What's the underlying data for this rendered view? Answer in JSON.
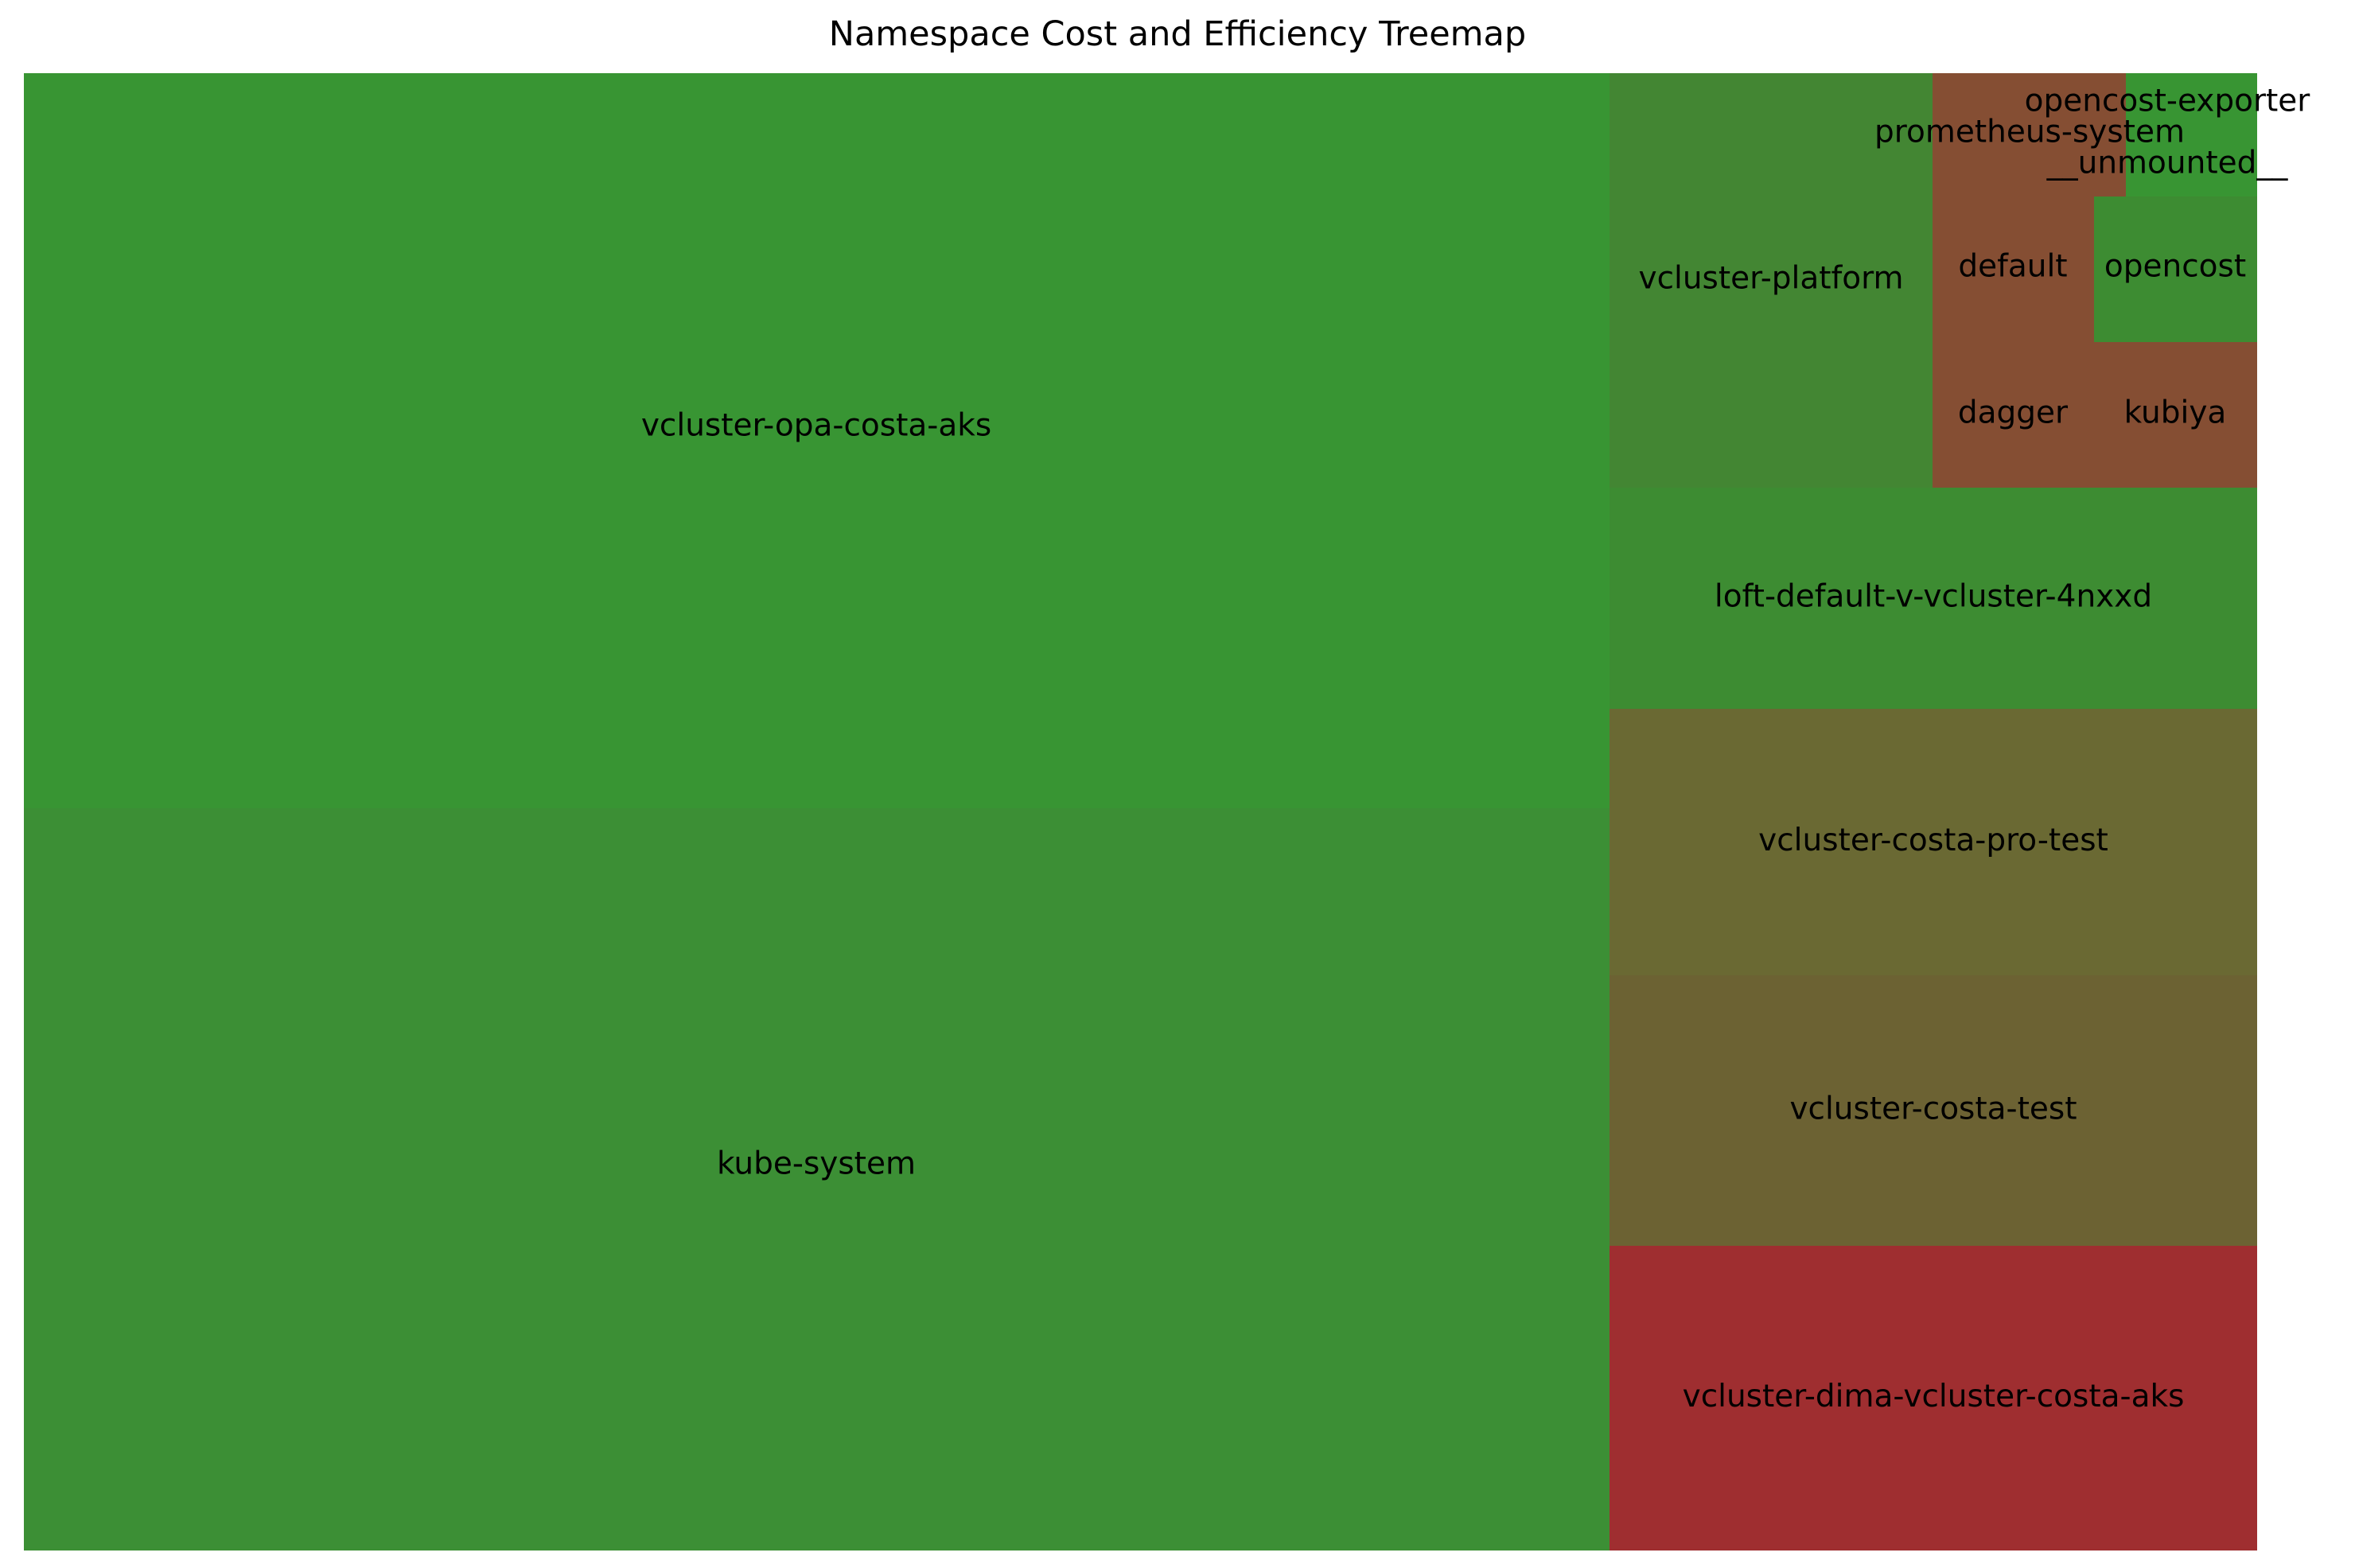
{
  "chart_data": {
    "type": "treemap",
    "title": "Namespace Cost and Efficiency Treemap",
    "color_scale": {
      "efficient": "#389533",
      "inefficient": "#a12d2f"
    },
    "tiles": [
      {
        "name": "vcluster-opa-costa-aks",
        "size": 937,
        "color": "#389533"
      },
      {
        "name": "kube-system",
        "size": 952,
        "color": "#3c8f35"
      },
      {
        "name": "vcluster-platform",
        "size": 26.0,
        "color": "#438633"
      },
      {
        "name": "loft-default-v-vcluster-4nxxd",
        "size": 27.6,
        "color": "#3d8c32"
      },
      {
        "name": "vcluster-costa-pro-test",
        "size": 33.2,
        "color": "#6a6933"
      },
      {
        "name": "vcluster-costa-test",
        "size": 33.8,
        "color": "#6c6233"
      },
      {
        "name": "vcluster-dima-vcluster-costa-aks",
        "size": 37.8,
        "color": "#9f2e30"
      },
      {
        "name": "prometheus-system",
        "size": 3.6,
        "color": "#854e33"
      },
      {
        "name": "opencost-exporter",
        "size": 1.14,
        "color": "#389533"
      },
      {
        "name": "__unmounted__",
        "size": 0.07,
        "color": "#389533"
      },
      {
        "name": "default",
        "size": 4.4,
        "color": "#854e33"
      },
      {
        "name": "opencost",
        "size": 3.6,
        "color": "#3d8c32"
      },
      {
        "name": "dagger",
        "size": 4.4,
        "color": "#854e33"
      },
      {
        "name": "kubiya",
        "size": 3.6,
        "color": "#854e33"
      }
    ]
  }
}
